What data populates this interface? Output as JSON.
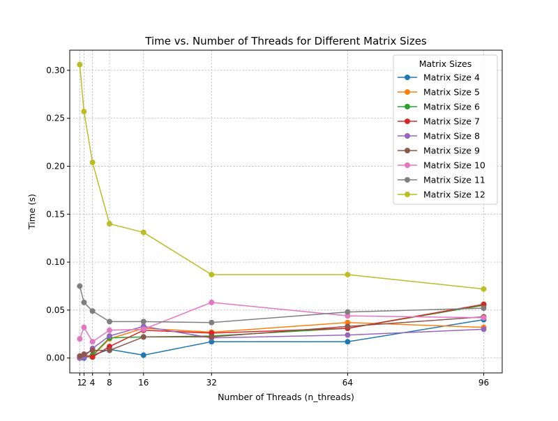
{
  "chart_data": {
    "type": "line",
    "title": "Time vs. Number of Threads for Different Matrix Sizes",
    "xlabel": "Number of Threads (n_threads)",
    "ylabel": "Time (s)",
    "x": [
      1,
      2,
      4,
      8,
      16,
      32,
      64,
      96
    ],
    "x_ticks": [
      "1",
      "2",
      "4",
      "8",
      "16",
      "32",
      "64",
      "96"
    ],
    "xlim": [
      -1.35,
      100.35
    ],
    "y_ticks": [
      "0.00",
      "0.05",
      "0.10",
      "0.15",
      "0.20",
      "0.25",
      "0.30"
    ],
    "ylim": [
      -0.0155,
      0.321
    ],
    "grid": true,
    "marker": "circle",
    "legend": {
      "title": "Matrix Sizes",
      "placement": "upper right"
    },
    "series": [
      {
        "name": "Matrix Size 4",
        "color": "#1f77b4",
        "values": [
          0.0,
          0.0,
          0.003,
          0.009,
          0.003,
          0.017,
          0.017,
          0.04
        ]
      },
      {
        "name": "Matrix Size 5",
        "color": "#ff7f0e",
        "values": [
          0.0,
          0.003,
          0.002,
          0.02,
          0.031,
          0.027,
          0.037,
          0.032
        ]
      },
      {
        "name": "Matrix Size 6",
        "color": "#2ca02c",
        "values": [
          0.0,
          0.001,
          0.003,
          0.021,
          0.022,
          0.023,
          0.031,
          0.055
        ]
      },
      {
        "name": "Matrix Size 7",
        "color": "#d62728",
        "values": [
          0.0,
          0.002,
          0.001,
          0.012,
          0.029,
          0.026,
          0.031,
          0.056
        ]
      },
      {
        "name": "Matrix Size 8",
        "color": "#9467bd",
        "values": [
          0.0,
          0.001,
          0.01,
          0.023,
          0.033,
          0.021,
          0.024,
          0.03
        ]
      },
      {
        "name": "Matrix Size 9",
        "color": "#8c564b",
        "values": [
          0.002,
          0.004,
          0.008,
          0.008,
          0.022,
          0.022,
          0.033,
          0.043
        ]
      },
      {
        "name": "Matrix Size 10",
        "color": "#e377c2",
        "values": [
          0.02,
          0.032,
          0.017,
          0.029,
          0.03,
          0.058,
          0.044,
          0.042
        ]
      },
      {
        "name": "Matrix Size 11",
        "color": "#7f7f7f",
        "values": [
          0.075,
          0.058,
          0.049,
          0.038,
          0.038,
          0.037,
          0.048,
          0.052
        ]
      },
      {
        "name": "Matrix Size 12",
        "color": "#bcbd22",
        "values": [
          0.306,
          0.257,
          0.204,
          0.14,
          0.131,
          0.087,
          0.087,
          0.072
        ]
      }
    ]
  }
}
